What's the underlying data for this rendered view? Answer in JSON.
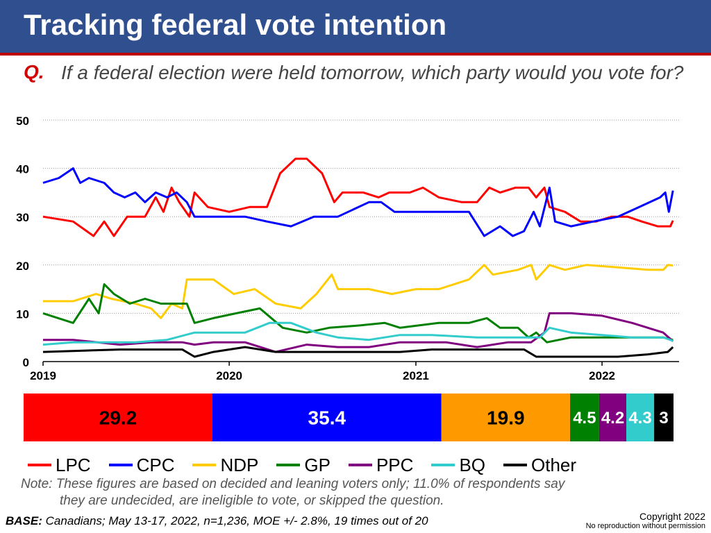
{
  "header": {
    "title": "Tracking federal vote intention",
    "question_marker": "Q.",
    "question_text": "If a federal election were held tomorrow, which party would you vote for?"
  },
  "colors": {
    "title_bar": "#2f4f8f",
    "accent": "#c00000",
    "LPC": "#ff0000",
    "CPC": "#0000ff",
    "NDP": "#ffcc00",
    "GP": "#008000",
    "PPC": "#800080",
    "BQ": "#33cccc",
    "Other": "#000000",
    "NDP_bar": "#ff9900"
  },
  "chart_data": [
    {
      "type": "line",
      "x_axis": {
        "type": "date",
        "ticks": [
          "2019",
          "2020",
          "2021",
          "2022"
        ],
        "range": [
          "2019-01-01",
          "2022-06-01"
        ]
      },
      "ylim": [
        0,
        50
      ],
      "y_ticks": [
        "0",
        "10",
        "20",
        "30",
        "40",
        "50"
      ],
      "grid": true,
      "legend_position": "bottom",
      "series": [
        {
          "name": "LPC",
          "points": [
            [
              "2019-01-01",
              30
            ],
            [
              "2019-03-01",
              29
            ],
            [
              "2019-04-10",
              26
            ],
            [
              "2019-05-01",
              29
            ],
            [
              "2019-05-20",
              26
            ],
            [
              "2019-06-15",
              30
            ],
            [
              "2019-07-20",
              30
            ],
            [
              "2019-08-10",
              34
            ],
            [
              "2019-08-25",
              31
            ],
            [
              "2019-09-10",
              36
            ],
            [
              "2019-09-25",
              33
            ],
            [
              "2019-10-15",
              30
            ],
            [
              "2019-10-25",
              35
            ],
            [
              "2019-11-20",
              32
            ],
            [
              "2020-01-01",
              31
            ],
            [
              "2020-02-10",
              32
            ],
            [
              "2020-03-15",
              32
            ],
            [
              "2020-04-10",
              39
            ],
            [
              "2020-05-10",
              42
            ],
            [
              "2020-06-01",
              42
            ],
            [
              "2020-07-01",
              39
            ],
            [
              "2020-07-25",
              33
            ],
            [
              "2020-08-10",
              35
            ],
            [
              "2020-09-20",
              35
            ],
            [
              "2020-10-20",
              34
            ],
            [
              "2020-11-10",
              35
            ],
            [
              "2020-12-20",
              35
            ],
            [
              "2021-01-15",
              36
            ],
            [
              "2021-02-15",
              34
            ],
            [
              "2021-04-01",
              33
            ],
            [
              "2021-05-01",
              33
            ],
            [
              "2021-05-25",
              36
            ],
            [
              "2021-06-15",
              35
            ],
            [
              "2021-07-15",
              36
            ],
            [
              "2021-08-10",
              36
            ],
            [
              "2021-08-25",
              34
            ],
            [
              "2021-09-10",
              36
            ],
            [
              "2021-09-20",
              32
            ],
            [
              "2021-10-20",
              31
            ],
            [
              "2021-11-20",
              29
            ],
            [
              "2021-12-20",
              29
            ],
            [
              "2022-01-20",
              30
            ],
            [
              "2022-02-20",
              30
            ],
            [
              "2022-03-20",
              29
            ],
            [
              "2022-04-20",
              28
            ],
            [
              "2022-05-15",
              28
            ],
            [
              "2022-05-20",
              29.2
            ]
          ]
        },
        {
          "name": "CPC",
          "points": [
            [
              "2019-01-01",
              37
            ],
            [
              "2019-02-01",
              38
            ],
            [
              "2019-03-01",
              40
            ],
            [
              "2019-03-15",
              37
            ],
            [
              "2019-04-01",
              38
            ],
            [
              "2019-05-01",
              37
            ],
            [
              "2019-05-20",
              35
            ],
            [
              "2019-06-10",
              34
            ],
            [
              "2019-07-01",
              35
            ],
            [
              "2019-07-20",
              33
            ],
            [
              "2019-08-10",
              35
            ],
            [
              "2019-09-01",
              34
            ],
            [
              "2019-09-20",
              35
            ],
            [
              "2019-10-10",
              33
            ],
            [
              "2019-10-25",
              30
            ],
            [
              "2019-12-01",
              30
            ],
            [
              "2020-02-01",
              30
            ],
            [
              "2020-03-15",
              29
            ],
            [
              "2020-05-01",
              28
            ],
            [
              "2020-06-15",
              30
            ],
            [
              "2020-08-01",
              30
            ],
            [
              "2020-10-01",
              33
            ],
            [
              "2020-10-25",
              33
            ],
            [
              "2020-11-20",
              31
            ],
            [
              "2021-01-01",
              31
            ],
            [
              "2021-03-15",
              31
            ],
            [
              "2021-04-15",
              31
            ],
            [
              "2021-05-15",
              26
            ],
            [
              "2021-06-15",
              28
            ],
            [
              "2021-07-10",
              26
            ],
            [
              "2021-08-01",
              27
            ],
            [
              "2021-08-20",
              31
            ],
            [
              "2021-09-01",
              28
            ],
            [
              "2021-09-20",
              36
            ],
            [
              "2021-10-01",
              29
            ],
            [
              "2021-11-01",
              28
            ],
            [
              "2021-12-15",
              29
            ],
            [
              "2022-02-01",
              30
            ],
            [
              "2022-03-15",
              32
            ],
            [
              "2022-04-25",
              34
            ],
            [
              "2022-05-05",
              35
            ],
            [
              "2022-05-12",
              31
            ],
            [
              "2022-05-20",
              35.4
            ]
          ]
        },
        {
          "name": "NDP",
          "points": [
            [
              "2019-01-01",
              12.5
            ],
            [
              "2019-03-01",
              12.5
            ],
            [
              "2019-04-15",
              14
            ],
            [
              "2019-05-15",
              13
            ],
            [
              "2019-07-01",
              12
            ],
            [
              "2019-08-01",
              11
            ],
            [
              "2019-08-20",
              9
            ],
            [
              "2019-09-10",
              12
            ],
            [
              "2019-10-01",
              11
            ],
            [
              "2019-10-10",
              17
            ],
            [
              "2019-12-01",
              17
            ],
            [
              "2020-01-10",
              14
            ],
            [
              "2020-02-20",
              15
            ],
            [
              "2020-04-01",
              12
            ],
            [
              "2020-05-20",
              11
            ],
            [
              "2020-06-20",
              14
            ],
            [
              "2020-07-20",
              18
            ],
            [
              "2020-08-01",
              15
            ],
            [
              "2020-10-01",
              15
            ],
            [
              "2020-11-15",
              14
            ],
            [
              "2021-01-01",
              15
            ],
            [
              "2021-02-15",
              15
            ],
            [
              "2021-04-15",
              17
            ],
            [
              "2021-05-15",
              20
            ],
            [
              "2021-06-01",
              18
            ],
            [
              "2021-07-20",
              19
            ],
            [
              "2021-08-15",
              20
            ],
            [
              "2021-08-25",
              17
            ],
            [
              "2021-09-20",
              20
            ],
            [
              "2021-10-20",
              19
            ],
            [
              "2021-12-01",
              20
            ],
            [
              "2022-02-01",
              19.5
            ],
            [
              "2022-04-01",
              19
            ],
            [
              "2022-05-01",
              19
            ],
            [
              "2022-05-10",
              20
            ],
            [
              "2022-05-20",
              19.9
            ]
          ]
        },
        {
          "name": "GP",
          "points": [
            [
              "2019-01-01",
              10
            ],
            [
              "2019-03-01",
              8
            ],
            [
              "2019-04-01",
              13
            ],
            [
              "2019-04-20",
              10
            ],
            [
              "2019-05-01",
              16
            ],
            [
              "2019-05-20",
              14
            ],
            [
              "2019-06-20",
              12
            ],
            [
              "2019-07-20",
              13
            ],
            [
              "2019-08-20",
              12
            ],
            [
              "2019-09-20",
              12
            ],
            [
              "2019-10-10",
              12
            ],
            [
              "2019-10-25",
              8
            ],
            [
              "2019-12-01",
              9
            ],
            [
              "2020-01-15",
              10
            ],
            [
              "2020-03-01",
              11
            ],
            [
              "2020-04-15",
              7
            ],
            [
              "2020-06-01",
              6
            ],
            [
              "2020-07-15",
              7
            ],
            [
              "2020-09-15",
              7.5
            ],
            [
              "2020-11-01",
              8
            ],
            [
              "2020-12-01",
              7
            ],
            [
              "2021-02-15",
              8
            ],
            [
              "2021-04-15",
              8
            ],
            [
              "2021-05-20",
              9
            ],
            [
              "2021-06-15",
              7
            ],
            [
              "2021-07-20",
              7
            ],
            [
              "2021-08-10",
              5
            ],
            [
              "2021-08-25",
              6
            ],
            [
              "2021-09-15",
              4
            ],
            [
              "2021-11-01",
              5
            ],
            [
              "2022-01-01",
              5
            ],
            [
              "2022-03-01",
              5
            ],
            [
              "2022-05-01",
              5
            ],
            [
              "2022-05-20",
              4.5
            ]
          ]
        },
        {
          "name": "PPC",
          "points": [
            [
              "2019-01-01",
              4.5
            ],
            [
              "2019-03-01",
              4.5
            ],
            [
              "2019-06-01",
              3.5
            ],
            [
              "2019-08-01",
              4
            ],
            [
              "2019-10-01",
              4
            ],
            [
              "2019-10-25",
              3.5
            ],
            [
              "2019-12-01",
              4
            ],
            [
              "2020-02-01",
              4
            ],
            [
              "2020-04-01",
              2
            ],
            [
              "2020-06-01",
              3.5
            ],
            [
              "2020-08-01",
              3
            ],
            [
              "2020-10-01",
              3
            ],
            [
              "2020-12-01",
              4
            ],
            [
              "2021-03-01",
              4
            ],
            [
              "2021-05-01",
              3
            ],
            [
              "2021-07-01",
              4
            ],
            [
              "2021-08-15",
              4
            ],
            [
              "2021-09-10",
              6
            ],
            [
              "2021-09-20",
              10
            ],
            [
              "2021-11-01",
              10
            ],
            [
              "2022-01-01",
              9.5
            ],
            [
              "2022-03-01",
              8
            ],
            [
              "2022-05-01",
              6
            ],
            [
              "2022-05-20",
              4.2
            ]
          ]
        },
        {
          "name": "BQ",
          "points": [
            [
              "2019-01-01",
              3.5
            ],
            [
              "2019-03-01",
              4
            ],
            [
              "2019-05-01",
              4
            ],
            [
              "2019-07-01",
              4
            ],
            [
              "2019-09-01",
              4.5
            ],
            [
              "2019-10-25",
              6
            ],
            [
              "2019-12-01",
              6
            ],
            [
              "2020-02-01",
              6
            ],
            [
              "2020-03-20",
              8
            ],
            [
              "2020-05-01",
              8
            ],
            [
              "2020-06-20",
              6
            ],
            [
              "2020-08-01",
              5
            ],
            [
              "2020-10-01",
              4.5
            ],
            [
              "2020-12-01",
              5.5
            ],
            [
              "2021-02-01",
              5.5
            ],
            [
              "2021-05-01",
              5
            ],
            [
              "2021-07-01",
              5
            ],
            [
              "2021-09-01",
              5
            ],
            [
              "2021-09-20",
              7
            ],
            [
              "2021-11-01",
              6
            ],
            [
              "2022-01-01",
              5.5
            ],
            [
              "2022-03-01",
              5
            ],
            [
              "2022-05-01",
              5
            ],
            [
              "2022-05-20",
              4.3
            ]
          ]
        },
        {
          "name": "Other",
          "points": [
            [
              "2019-01-01",
              2
            ],
            [
              "2019-06-01",
              2.5
            ],
            [
              "2019-10-01",
              2.5
            ],
            [
              "2019-10-25",
              1
            ],
            [
              "2019-12-01",
              2
            ],
            [
              "2020-02-01",
              3
            ],
            [
              "2020-04-01",
              2
            ],
            [
              "2020-06-01",
              2
            ],
            [
              "2020-08-01",
              2
            ],
            [
              "2020-10-01",
              2
            ],
            [
              "2020-12-01",
              2
            ],
            [
              "2021-02-01",
              2.5
            ],
            [
              "2021-04-01",
              2.5
            ],
            [
              "2021-06-01",
              2.5
            ],
            [
              "2021-08-01",
              2.5
            ],
            [
              "2021-08-25",
              1
            ],
            [
              "2021-10-01",
              1
            ],
            [
              "2021-12-01",
              1
            ],
            [
              "2022-02-01",
              1
            ],
            [
              "2022-04-01",
              1.5
            ],
            [
              "2022-05-10",
              2
            ],
            [
              "2022-05-20",
              3
            ]
          ]
        }
      ]
    },
    {
      "type": "bar",
      "orientation": "horizontal",
      "stacked": true,
      "categories": [
        "LPC",
        "CPC",
        "NDP",
        "GP",
        "PPC",
        "BQ",
        "Other"
      ],
      "values": [
        29.2,
        35.4,
        19.9,
        4.5,
        4.2,
        4.3,
        3
      ],
      "value_labels": [
        "29.2",
        "35.4",
        "19.9",
        "4.5",
        "4.2",
        "4.3",
        "3"
      ]
    }
  ],
  "legend": {
    "items": [
      {
        "label": "LPC",
        "color": "#ff0000"
      },
      {
        "label": "CPC",
        "color": "#0000ff"
      },
      {
        "label": "NDP",
        "color": "#ffcc00"
      },
      {
        "label": "GP",
        "color": "#008000"
      },
      {
        "label": "PPC",
        "color": "#800080"
      },
      {
        "label": "BQ",
        "color": "#33cccc"
      },
      {
        "label": "Other",
        "color": "#000000"
      }
    ]
  },
  "footer": {
    "note_line1": "Note:  These figures are based on decided and leaning voters only; 11.0% of respondents say",
    "note_line2": "they are undecided, are ineligible to vote, or skipped the question.",
    "base_label": "BASE:",
    "base_text": " Canadians; May 13-17, 2022, n=1,236,  MOE +/- 2.8%, 19 times out of 20",
    "copyright": "Copyright 2022",
    "copyright_sub": "No reproduction without permission"
  }
}
